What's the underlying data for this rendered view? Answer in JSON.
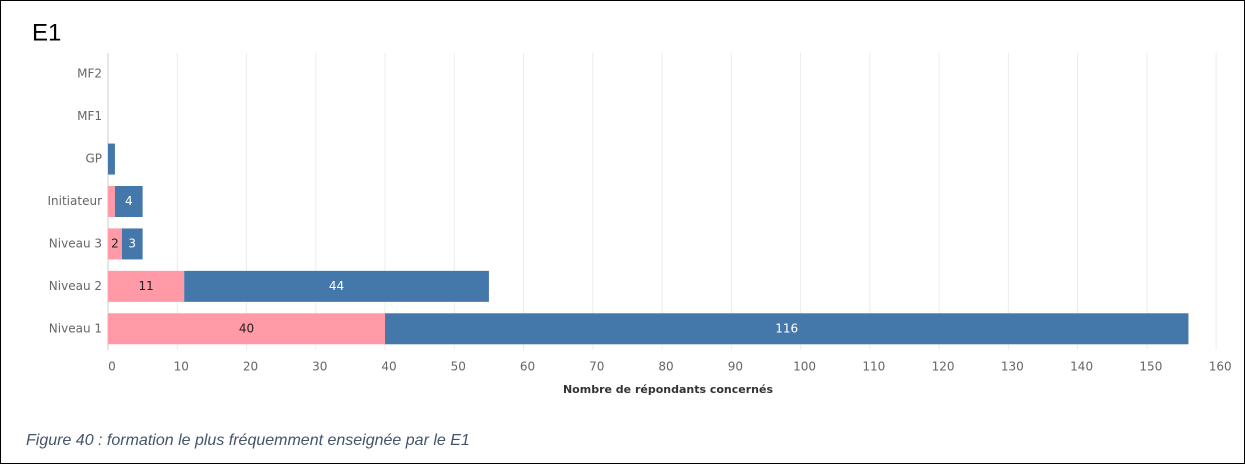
{
  "chart_data": {
    "type": "stacked_bar_horizontal",
    "title": "E1",
    "categories": [
      "MF2",
      "MF1",
      "GP",
      "Initiateur",
      "Niveau 3",
      "Niveau 2",
      "Niveau 1"
    ],
    "series": [
      {
        "color": "#ff9aa6",
        "values": [
          0,
          0,
          0,
          1,
          2,
          11,
          40
        ]
      },
      {
        "color": "#4477aa",
        "values": [
          0,
          0,
          1,
          4,
          3,
          44,
          116
        ]
      }
    ],
    "xlabel": "Nombre de répondants concernés",
    "xlim": [
      0,
      162
    ],
    "xticks": [
      0,
      10,
      20,
      30,
      40,
      50,
      60,
      70,
      80,
      90,
      100,
      110,
      120,
      130,
      140,
      150,
      160
    ],
    "grid": true,
    "caption": "Figure 40 : formation le plus fréquemment enseignée par le E1"
  }
}
